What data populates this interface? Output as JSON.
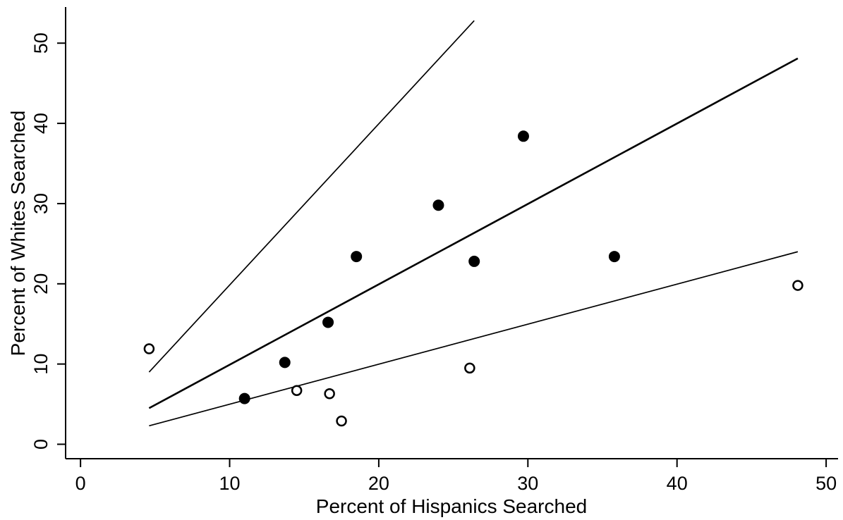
{
  "chart_data": {
    "type": "scatter",
    "xlabel": "Percent of Hispanics Searched",
    "ylabel": "Percent of Whites Searched",
    "xlim": [
      -1,
      50.8
    ],
    "ylim": [
      -1.8,
      54.5
    ],
    "x_ticks": [
      "0",
      "10",
      "20",
      "30",
      "40",
      "50"
    ],
    "y_ticks": [
      "0",
      "10",
      "20",
      "30",
      "40",
      "50"
    ],
    "x_tick_values": [
      0,
      10,
      20,
      30,
      40,
      50
    ],
    "y_tick_values": [
      0,
      10,
      20,
      30,
      40,
      50
    ],
    "grid": false,
    "legend": "none",
    "series": [
      {
        "marker": "filled-circle",
        "points": [
          {
            "x": 11.0,
            "y": 5.7
          },
          {
            "x": 13.7,
            "y": 10.2
          },
          {
            "x": 16.6,
            "y": 15.2
          },
          {
            "x": 18.5,
            "y": 23.4
          },
          {
            "x": 24.0,
            "y": 29.8
          },
          {
            "x": 26.4,
            "y": 22.8
          },
          {
            "x": 29.7,
            "y": 38.4
          },
          {
            "x": 35.8,
            "y": 23.4
          }
        ]
      },
      {
        "marker": "hollow-circle",
        "points": [
          {
            "x": 4.6,
            "y": 11.9
          },
          {
            "x": 14.5,
            "y": 6.7
          },
          {
            "x": 16.7,
            "y": 6.3
          },
          {
            "x": 17.5,
            "y": 2.9
          },
          {
            "x": 26.1,
            "y": 9.5
          },
          {
            "x": 48.1,
            "y": 19.8
          }
        ]
      }
    ],
    "lines": [
      {
        "x": [
          4.6,
          26.4
        ],
        "y": [
          9.0,
          52.8
        ],
        "weight": "thin"
      },
      {
        "x": [
          4.6,
          48.1
        ],
        "y": [
          4.5,
          48.1
        ],
        "weight": "thick"
      },
      {
        "x": [
          4.6,
          48.1
        ],
        "y": [
          2.3,
          24.0
        ],
        "weight": "thin"
      }
    ]
  }
}
